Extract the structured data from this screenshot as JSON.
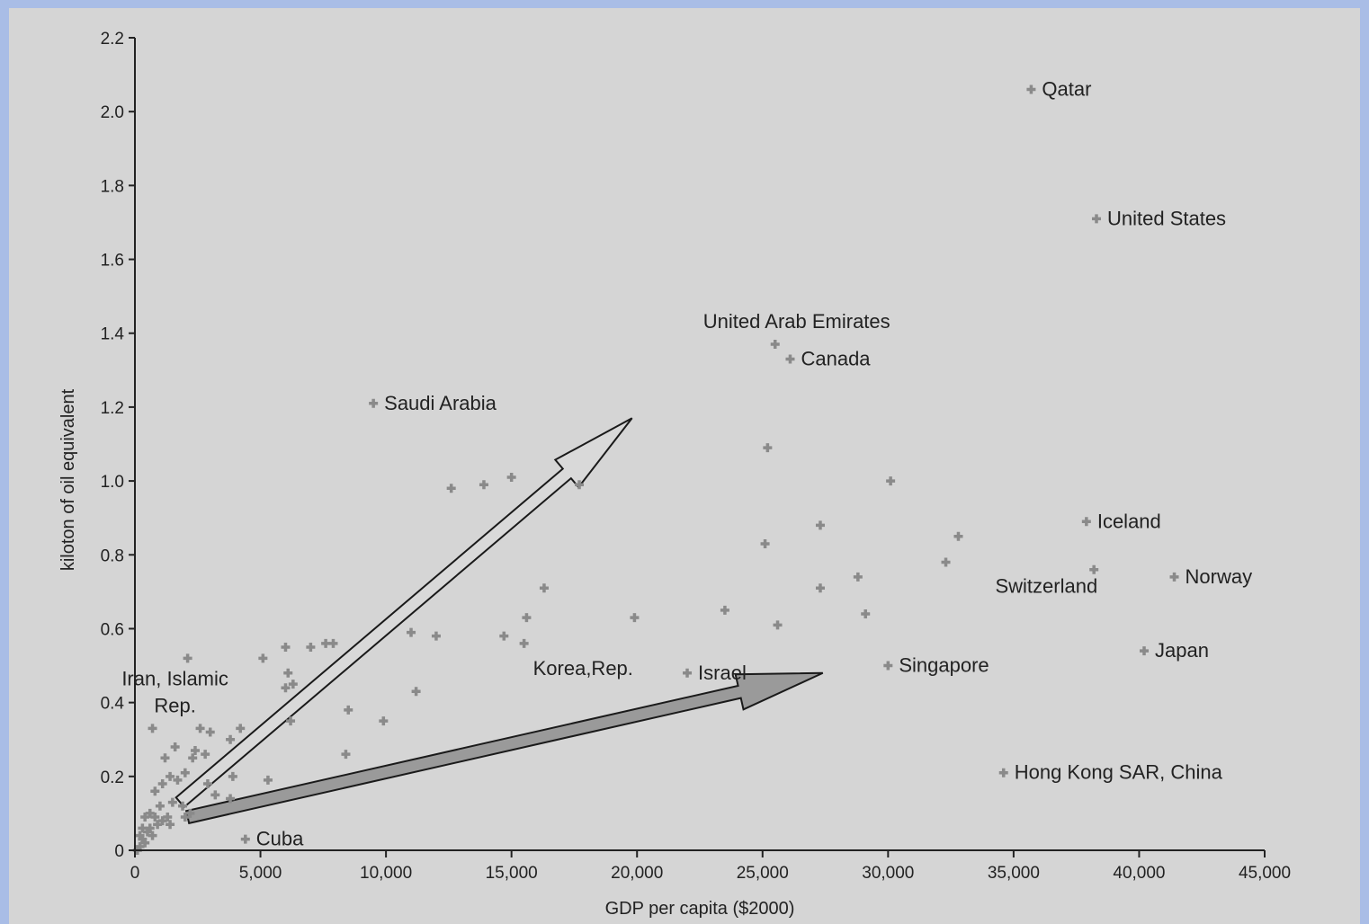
{
  "colors": {
    "background_border": "#a9bde6",
    "plot_background": "#d5d5d5",
    "point": "#8a8a8a",
    "axis": "#222222",
    "arrow_light_fill": "#d9d9d9",
    "arrow_dark_fill": "#9a9a9a"
  },
  "chart_data": {
    "type": "scatter",
    "title": "",
    "xlabel": "GDP per capita ($2000)",
    "ylabel": "kiloton of oil equivalent",
    "xlim": [
      0,
      45000
    ],
    "ylim": [
      0,
      2.2
    ],
    "x_ticks": [
      0,
      5000,
      10000,
      15000,
      20000,
      25000,
      30000,
      35000,
      40000,
      45000
    ],
    "x_tick_labels": [
      "0",
      "5,000",
      "10,000",
      "15,000",
      "20,000",
      "25,000",
      "30,000",
      "35,000",
      "40,000",
      "45,000"
    ],
    "y_ticks": [
      0,
      0.2,
      0.4,
      0.6,
      0.8,
      1.0,
      1.2,
      1.4,
      1.6,
      1.8,
      2.0,
      2.2
    ],
    "y_tick_labels": [
      "0",
      "0.2",
      "0.4",
      "0.6",
      "0.8",
      "1.0",
      "1.2",
      "1.4",
      "1.6",
      "1.8",
      "2.0",
      "2.2"
    ],
    "grid": false,
    "labeled_points": [
      {
        "label": "Qatar",
        "x": 35700,
        "y": 2.06,
        "label_pos": "right"
      },
      {
        "label": "United States",
        "x": 38300,
        "y": 1.71,
        "label_pos": "right"
      },
      {
        "label": "United Arab Emirates",
        "x": 25500,
        "y": 1.37,
        "label_pos": "above"
      },
      {
        "label": "Canada",
        "x": 26100,
        "y": 1.33,
        "label_pos": "right"
      },
      {
        "label": "Saudi Arabia",
        "x": 9500,
        "y": 1.21,
        "label_pos": "right"
      },
      {
        "label": "Iceland",
        "x": 37900,
        "y": 0.89,
        "label_pos": "right"
      },
      {
        "label": "Switzerland",
        "x": 38200,
        "y": 0.76,
        "label_pos": "below-left"
      },
      {
        "label": "Norway",
        "x": 41400,
        "y": 0.74,
        "label_pos": "right"
      },
      {
        "label": "Japan",
        "x": 40200,
        "y": 0.54,
        "label_pos": "right"
      },
      {
        "label": "Singapore",
        "x": 30000,
        "y": 0.5,
        "label_pos": "right"
      },
      {
        "label": "Israel",
        "x": 22000,
        "y": 0.48,
        "label_pos": "right"
      },
      {
        "label": "Korea,Rep.",
        "x": 15500,
        "y": 0.56,
        "label_pos": "below-right"
      },
      {
        "label": "Hong Kong SAR, China",
        "x": 34600,
        "y": 0.21,
        "label_pos": "right"
      },
      {
        "label": "Cuba",
        "x": 4400,
        "y": 0.03,
        "label_pos": "right"
      },
      {
        "label": "Iran, Islamic Rep.",
        "x": 2100,
        "y": 0.52,
        "label_pos": "below-left"
      }
    ],
    "points": [
      [
        25200,
        1.09
      ],
      [
        30100,
        1.0
      ],
      [
        12600,
        0.98
      ],
      [
        13900,
        0.99
      ],
      [
        15000,
        1.01
      ],
      [
        17700,
        0.99
      ],
      [
        27300,
        0.88
      ],
      [
        25100,
        0.83
      ],
      [
        32800,
        0.85
      ],
      [
        32300,
        0.78
      ],
      [
        28800,
        0.74
      ],
      [
        27300,
        0.71
      ],
      [
        16300,
        0.71
      ],
      [
        15600,
        0.63
      ],
      [
        19900,
        0.63
      ],
      [
        23500,
        0.65
      ],
      [
        25600,
        0.61
      ],
      [
        29100,
        0.64
      ],
      [
        14700,
        0.58
      ],
      [
        11000,
        0.59
      ],
      [
        12000,
        0.58
      ],
      [
        6000,
        0.55
      ],
      [
        7000,
        0.55
      ],
      [
        7600,
        0.56
      ],
      [
        7900,
        0.56
      ],
      [
        5100,
        0.52
      ],
      [
        6100,
        0.48
      ],
      [
        6300,
        0.45
      ],
      [
        6000,
        0.44
      ],
      [
        11200,
        0.43
      ],
      [
        8500,
        0.38
      ],
      [
        9900,
        0.35
      ],
      [
        6200,
        0.35
      ],
      [
        4200,
        0.33
      ],
      [
        3000,
        0.32
      ],
      [
        2600,
        0.33
      ],
      [
        3800,
        0.3
      ],
      [
        2400,
        0.27
      ],
      [
        2800,
        0.26
      ],
      [
        1600,
        0.28
      ],
      [
        2300,
        0.25
      ],
      [
        1200,
        0.25
      ],
      [
        700,
        0.33
      ],
      [
        3900,
        0.2
      ],
      [
        5300,
        0.19
      ],
      [
        2000,
        0.21
      ],
      [
        1400,
        0.2
      ],
      [
        1700,
        0.19
      ],
      [
        1100,
        0.18
      ],
      [
        800,
        0.16
      ],
      [
        2900,
        0.18
      ],
      [
        3200,
        0.15
      ],
      [
        3800,
        0.14
      ],
      [
        8400,
        0.26
      ],
      [
        1000,
        0.12
      ],
      [
        1500,
        0.13
      ],
      [
        1900,
        0.12
      ],
      [
        2200,
        0.1
      ],
      [
        1300,
        0.09
      ],
      [
        800,
        0.09
      ],
      [
        600,
        0.1
      ],
      [
        400,
        0.09
      ],
      [
        900,
        0.07
      ],
      [
        1400,
        0.07
      ],
      [
        2000,
        0.09
      ],
      [
        300,
        0.06
      ],
      [
        500,
        0.05
      ],
      [
        700,
        0.04
      ],
      [
        300,
        0.03
      ],
      [
        200,
        0.01
      ],
      [
        100,
        0.0
      ],
      [
        400,
        0.02
      ],
      [
        600,
        0.06
      ],
      [
        1100,
        0.08
      ],
      [
        200,
        0.04
      ]
    ],
    "annotations": [
      {
        "type": "arrow",
        "style": "light",
        "from": [
          1800,
          0.13
        ],
        "to": [
          19800,
          1.17
        ]
      },
      {
        "type": "arrow",
        "style": "dark",
        "from": [
          2100,
          0.09
        ],
        "to": [
          27400,
          0.48
        ]
      }
    ]
  }
}
